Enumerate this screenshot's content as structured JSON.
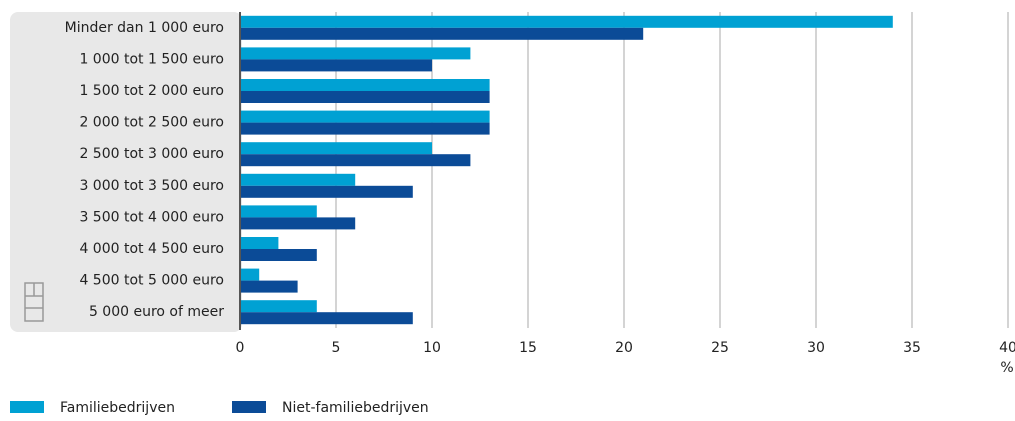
{
  "chart_data": {
    "type": "hbar",
    "categories": [
      "Minder dan 1 000 euro",
      "1 000 tot 1 500 euro",
      "1 500 tot 2 000 euro",
      "2 000 tot 2 500 euro",
      "2 500 tot 3 000 euro",
      "3 000 tot 3 500 euro",
      "3 500 tot 4 000 euro",
      "4 000 tot 4 500 euro",
      "4 500 tot 5 000 euro",
      "5 000 euro of meer"
    ],
    "series": [
      {
        "name": "Familiebedrijven",
        "color": "#00a1d3",
        "values": [
          34,
          12,
          13,
          13,
          10,
          6,
          4,
          2,
          1,
          4
        ]
      },
      {
        "name": "Niet-familiebedrijven",
        "color": "#0b4b97",
        "values": [
          21,
          10,
          13,
          13,
          12,
          9,
          6,
          4,
          3,
          9
        ]
      }
    ],
    "x_label": "%",
    "xlim": [
      0,
      40
    ],
    "xticks": [
      0,
      5,
      10,
      15,
      20,
      25,
      30,
      35,
      40
    ],
    "grid": true
  }
}
